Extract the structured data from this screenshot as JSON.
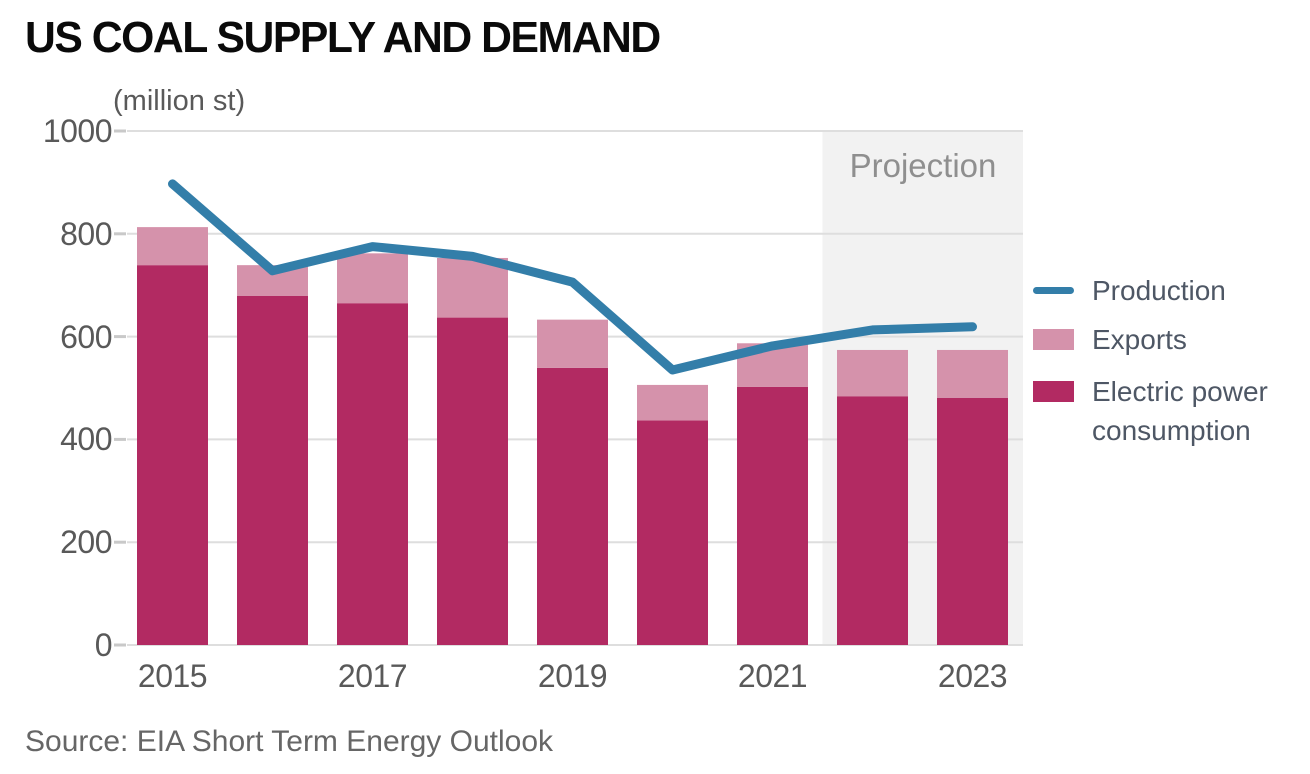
{
  "title": "US COAL SUPPLY AND DEMAND",
  "units_label": "(million st)",
  "projection_label": "Projection",
  "source_note": "Source: EIA Short Term Energy Outlook",
  "colors": {
    "title_text": "#0a0a0a",
    "axis_text": "#595959",
    "legend_text": "#4e5765",
    "projection_text": "#8f8f8f",
    "source_text": "#666666",
    "grid": "#dedede",
    "tick": "#c9c9c9",
    "projection_bg": "#f2f2f2",
    "bar_electric": "#b22a62",
    "bar_exports": "#d592ab",
    "line_production": "#337ea9"
  },
  "chart_data": {
    "type": "combo-stacked-bar-line",
    "x": [
      2015,
      2016,
      2017,
      2018,
      2019,
      2020,
      2021,
      2022,
      2023
    ],
    "series": [
      {
        "id": "electric",
        "name": "Electric power consumption",
        "type": "bar-stack",
        "color": "#b22a62",
        "values": [
          739,
          679,
          665,
          637,
          539,
          437,
          502,
          484,
          481
        ]
      },
      {
        "id": "exports",
        "name": "Exports",
        "type": "bar-stack",
        "color": "#d592ab",
        "values": [
          74,
          60,
          97,
          116,
          94,
          69,
          85,
          90,
          93
        ]
      },
      {
        "id": "production",
        "name": "Production",
        "type": "line",
        "color": "#337ea9",
        "values": [
          897,
          728,
          775,
          756,
          706,
          535,
          582,
          613,
          619
        ]
      }
    ],
    "stack_totals": [
      813,
      739,
      762,
      753,
      633,
      506,
      587,
      574,
      574
    ],
    "ylim": [
      0,
      1000
    ],
    "yticks": [
      0,
      200,
      400,
      600,
      800,
      1000
    ],
    "xtick_labels": [
      "2015",
      "2017",
      "2019",
      "2021",
      "2023"
    ],
    "projection_from": 2022,
    "grid": true,
    "legend_position": "right"
  }
}
